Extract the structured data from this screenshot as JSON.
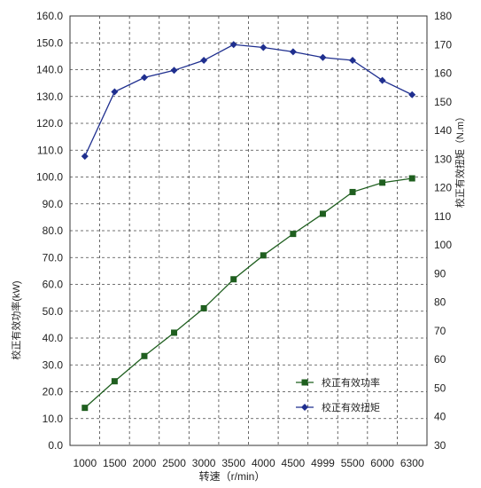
{
  "chart_data": {
    "type": "line",
    "categories": [
      "1000",
      "1500",
      "2000",
      "2500",
      "3000",
      "3500",
      "4000",
      "4500",
      "4999",
      "5500",
      "6000",
      "6300"
    ],
    "series": [
      {
        "name": "校正有效功率",
        "axis": "left",
        "color": "#1f5f1f",
        "marker": "square",
        "values": [
          14.0,
          23.9,
          33.3,
          42.0,
          51.1,
          61.9,
          70.8,
          78.8,
          86.3,
          94.4,
          97.9,
          99.5
        ]
      },
      {
        "name": "校正有效扭矩",
        "axis": "right",
        "color": "#1f2f8f",
        "marker": "diamond",
        "values": [
          131.0,
          153.5,
          158.5,
          161.0,
          164.5,
          170.0,
          169.0,
          167.5,
          165.5,
          164.5,
          157.5,
          152.5
        ]
      }
    ],
    "xlabel": "转速（r/min）",
    "ylabel_left": "校正有效功率(kW)",
    "ylabel_right": "校正有效扭矩（N.m）",
    "ylim_left": [
      0,
      160
    ],
    "ylim_right": [
      30,
      180
    ],
    "yticks_left": [
      "0.0",
      "10.0",
      "20.0",
      "30.0",
      "40.0",
      "50.0",
      "60.0",
      "70.0",
      "80.0",
      "90.0",
      "100.0",
      "110.0",
      "120.0",
      "130.0",
      "140.0",
      "150.0",
      "160.0"
    ],
    "yticks_right": [
      "30",
      "40",
      "50",
      "60",
      "70",
      "80",
      "90",
      "100",
      "110",
      "120",
      "130",
      "140",
      "150",
      "160",
      "170",
      "180"
    ],
    "grid": true,
    "legend_position": "bottom-right"
  }
}
